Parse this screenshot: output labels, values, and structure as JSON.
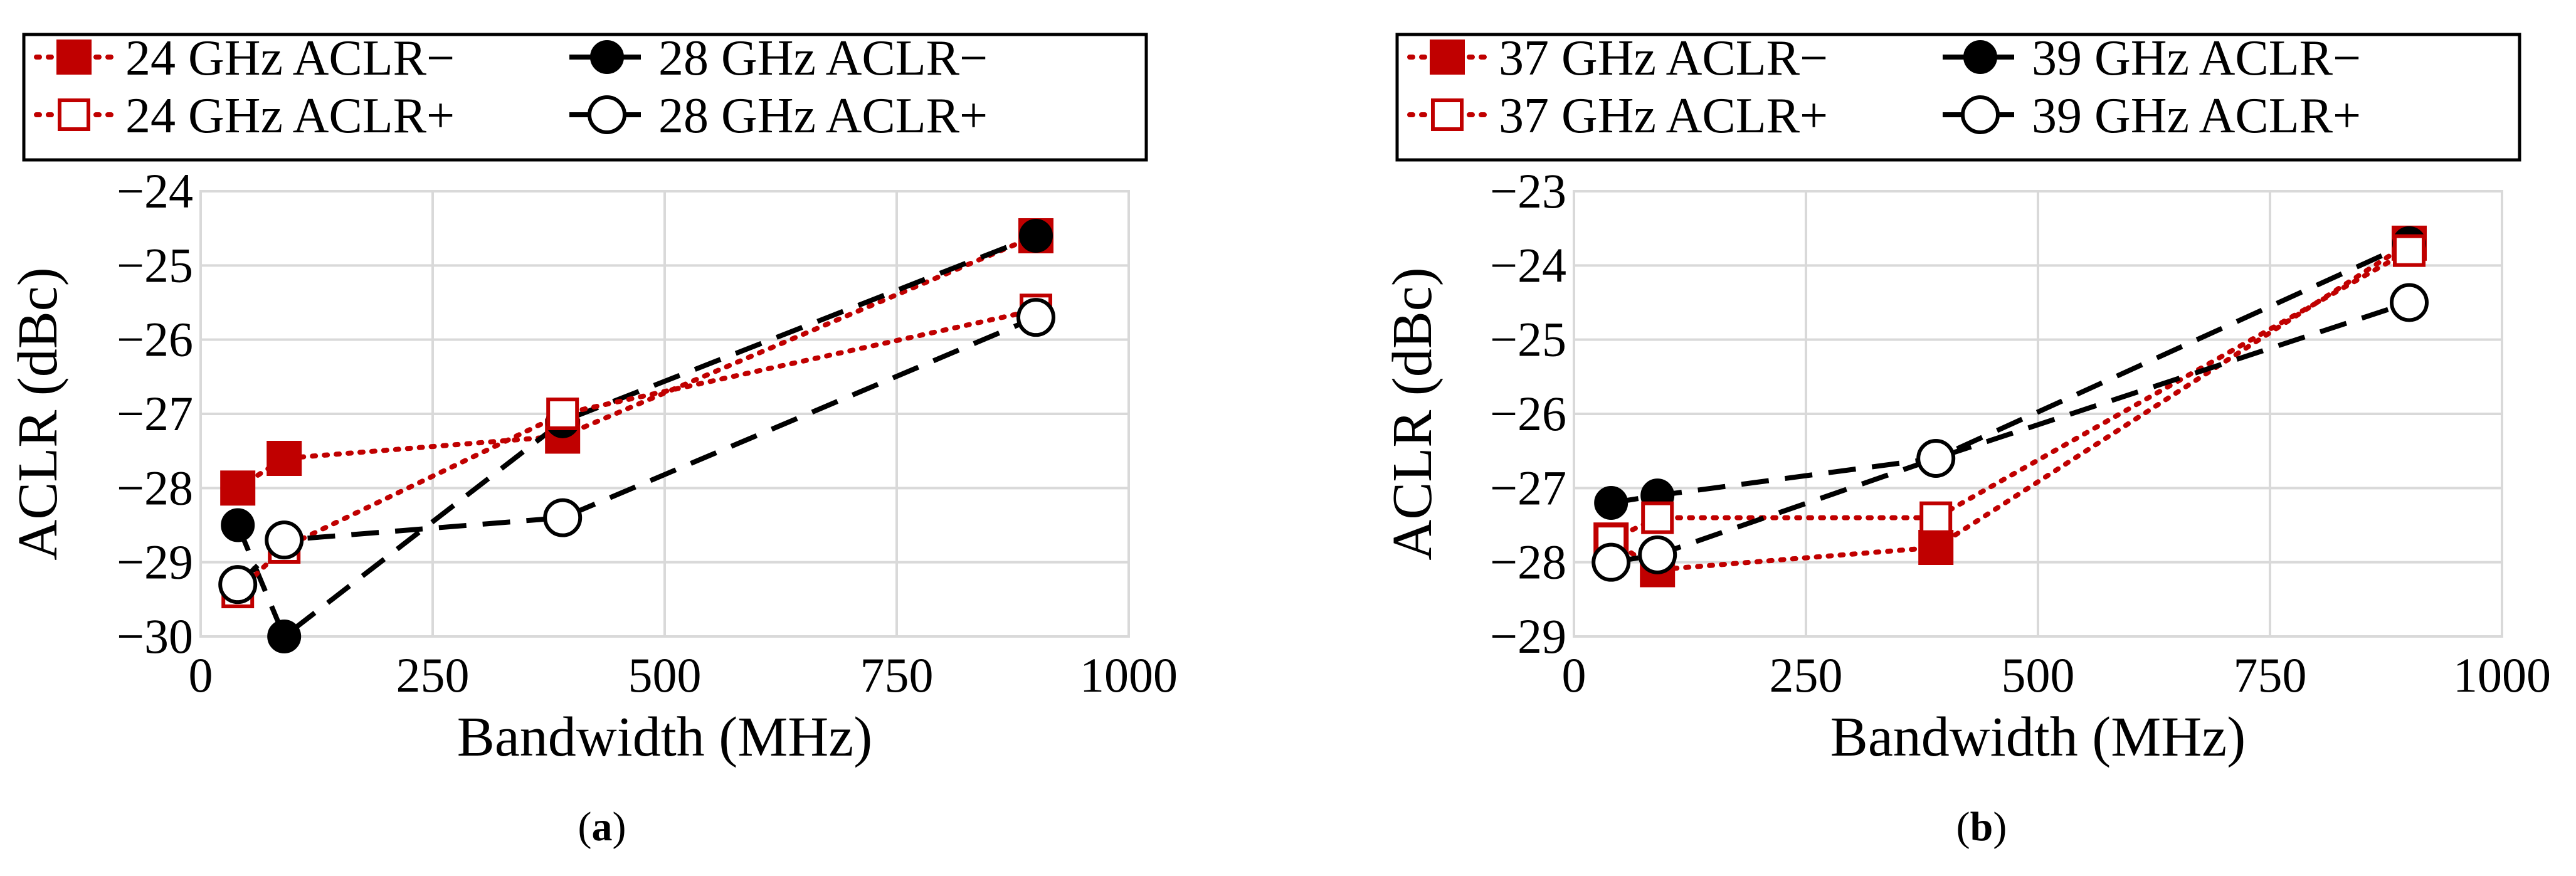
{
  "colors": {
    "red": "#c00000",
    "black": "#000000",
    "grid": "#d9d9d9"
  },
  "chart_data": [
    {
      "type": "line",
      "panel": "a",
      "caption_letter": "a",
      "xlabel": "Bandwidth (MHz)",
      "ylabel": "ACLR (dBc)",
      "xlim": [
        0,
        1000
      ],
      "ylim": [
        -30,
        -24
      ],
      "xticks": [
        "0",
        "250",
        "500",
        "750",
        "1000"
      ],
      "yticks": [
        "−30",
        "−29",
        "−28",
        "−27",
        "−26",
        "−25",
        "−24"
      ],
      "xticks_values": [
        0,
        250,
        500,
        750,
        1000
      ],
      "yticks_values": [
        -30,
        -29,
        -28,
        -27,
        -26,
        -25,
        -24
      ],
      "series": [
        {
          "name": "24 GHz ACLR−",
          "color": "#c00000",
          "dash": "dotted",
          "marker": "square-filled",
          "x": [
            40,
            90,
            390,
            900
          ],
          "y": [
            -28.0,
            -27.6,
            -27.3,
            -24.6
          ]
        },
        {
          "name": "28 GHz ACLR−",
          "color": "#000000",
          "dash": "dashed",
          "marker": "circle-filled",
          "x": [
            40,
            90,
            390,
            900
          ],
          "y": [
            -28.5,
            -30.0,
            -27.1,
            -24.6
          ]
        },
        {
          "name": "24 GHz ACLR+",
          "color": "#c00000",
          "dash": "dotted",
          "marker": "square-open",
          "x": [
            40,
            90,
            390,
            900
          ],
          "y": [
            -29.4,
            -28.8,
            -27.0,
            -25.6
          ]
        },
        {
          "name": "28 GHz ACLR+",
          "color": "#000000",
          "dash": "dashed",
          "marker": "circle-open",
          "x": [
            40,
            90,
            390,
            900
          ],
          "y": [
            -29.3,
            -28.7,
            -28.4,
            -25.7
          ]
        }
      ]
    },
    {
      "type": "line",
      "panel": "b",
      "caption_letter": "b",
      "xlabel": "Bandwidth (MHz)",
      "ylabel": "ACLR (dBc)",
      "xlim": [
        0,
        1000
      ],
      "ylim": [
        -29,
        -23
      ],
      "xticks": [
        "0",
        "250",
        "500",
        "750",
        "1000"
      ],
      "yticks": [
        "−29",
        "−28",
        "−27",
        "−26",
        "−25",
        "−24",
        "−23"
      ],
      "xticks_values": [
        0,
        250,
        500,
        750,
        1000
      ],
      "yticks_values": [
        -29,
        -28,
        -27,
        -26,
        -25,
        -24,
        -23
      ],
      "series": [
        {
          "name": "37 GHz ACLR−",
          "color": "#c00000",
          "dash": "dotted",
          "marker": "square-filled",
          "x": [
            40,
            90,
            390,
            900
          ],
          "y": [
            -27.7,
            -28.1,
            -27.8,
            -23.7
          ]
        },
        {
          "name": "39 GHz ACLR−",
          "color": "#000000",
          "dash": "dashed",
          "marker": "circle-filled",
          "x": [
            40,
            90,
            390,
            900
          ],
          "y": [
            -27.2,
            -27.1,
            -26.6,
            -23.7
          ]
        },
        {
          "name": "37 GHz ACLR+",
          "color": "#c00000",
          "dash": "dotted",
          "marker": "square-open",
          "x": [
            40,
            90,
            390,
            900
          ],
          "y": [
            -27.7,
            -27.4,
            -27.4,
            -23.8
          ]
        },
        {
          "name": "39 GHz ACLR+",
          "color": "#000000",
          "dash": "dashed",
          "marker": "circle-open",
          "x": [
            40,
            90,
            390,
            900
          ],
          "y": [
            -28.0,
            -27.9,
            -26.6,
            -24.5
          ]
        }
      ]
    }
  ]
}
